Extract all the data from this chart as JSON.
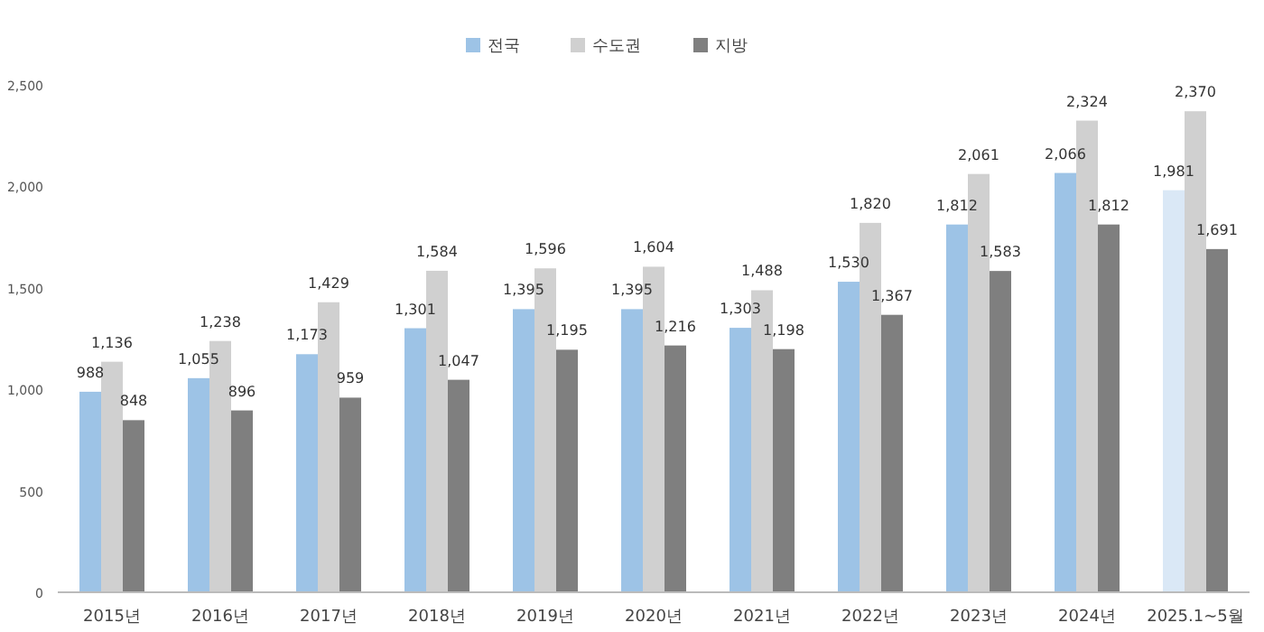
{
  "chart_data": {
    "type": "bar",
    "categories": [
      "2015년",
      "2016년",
      "2017년",
      "2018년",
      "2019년",
      "2020년",
      "2021년",
      "2022년",
      "2023년",
      "2024년",
      "2025.1~5월"
    ],
    "series": [
      {
        "name": "전국",
        "color": "#9dc3e6",
        "colors": [
          "#9dc3e6",
          "#9dc3e6",
          "#9dc3e6",
          "#9dc3e6",
          "#9dc3e6",
          "#9dc3e6",
          "#9dc3e6",
          "#9dc3e6",
          "#9dc3e6",
          "#9dc3e6",
          "#dae8f6"
        ],
        "values": [
          988,
          1055,
          1173,
          1301,
          1395,
          1395,
          1303,
          1530,
          1812,
          2066,
          1981
        ],
        "value_labels": [
          "988",
          "1,055",
          "1,173",
          "1,301",
          "1,395",
          "1,395",
          "1,303",
          "1,530",
          "1,812",
          "2,066",
          "1,981"
        ]
      },
      {
        "name": "수도권",
        "color": "#d0d0d0",
        "values": [
          1136,
          1238,
          1429,
          1584,
          1596,
          1604,
          1488,
          1820,
          2061,
          2324,
          2370
        ],
        "value_labels": [
          "1,136",
          "1,238",
          "1,429",
          "1,584",
          "1,596",
          "1,604",
          "1,488",
          "1,820",
          "2,061",
          "2,324",
          "2,370"
        ]
      },
      {
        "name": "지방",
        "color": "#7f7f7f",
        "values": [
          848,
          896,
          959,
          1047,
          1195,
          1216,
          1198,
          1367,
          1583,
          1812,
          1691
        ],
        "value_labels": [
          "848",
          "896",
          "959",
          "1,047",
          "1,195",
          "1,216",
          "1,198",
          "1,367",
          "1,583",
          "1,812",
          "1,691"
        ]
      }
    ],
    "ylim": [
      0,
      2500
    ],
    "yticks": [
      0,
      500,
      {
        "value": 1000,
        "label": "1,000"
      },
      {
        "value": 1500,
        "label": "1,500"
      },
      {
        "value": 2000,
        "label": "2,000"
      },
      {
        "value": 2500,
        "label": "2,500"
      }
    ],
    "grid": false,
    "legend": "top"
  }
}
